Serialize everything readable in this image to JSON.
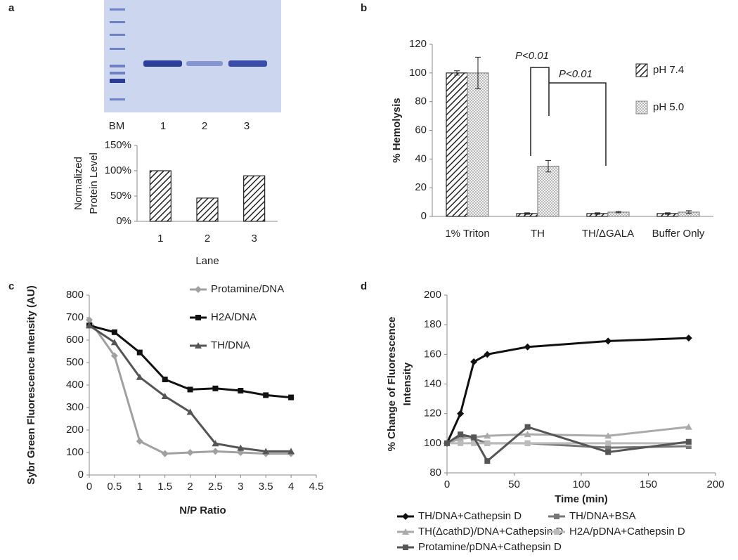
{
  "panel_labels": [
    "a",
    "b",
    "c",
    "d"
  ],
  "gel": {
    "lanes": [
      "BM",
      "1",
      "2",
      "3"
    ]
  },
  "chart_data": [
    {
      "type": "bar",
      "categories": [
        "1",
        "2",
        "3"
      ],
      "series": [
        {
          "values": [
            100,
            46,
            90
          ],
          "color": "#222222",
          "hatch": "diagonal"
        }
      ],
      "ylim": [
        0,
        150
      ],
      "yticks": [
        {
          "value": 0,
          "label": "0%"
        },
        {
          "value": 50,
          "label": "50%"
        },
        {
          "value": 100,
          "label": "100%"
        },
        {
          "value": 150,
          "label": "150%"
        }
      ],
      "ylabel_lines": [
        "Normalized",
        "Protein Level"
      ],
      "xlabel": "Lane",
      "grid": false
    },
    {
      "type": "bar",
      "categories": [
        "1% Triton",
        "TH",
        "TH/ΔGALA",
        "Buffer Only"
      ],
      "series": [
        {
          "name": "pH 7.4",
          "color": "#222222",
          "hatch": "diagonal",
          "values": [
            100,
            2,
            2,
            2
          ],
          "errors": [
            1.5,
            0.5,
            0.5,
            0.5
          ]
        },
        {
          "name": "pH 5.0",
          "color": "#888888",
          "hatch": "dots",
          "values": [
            100,
            35,
            3,
            3
          ],
          "errors": [
            11,
            4,
            0.5,
            1
          ]
        }
      ],
      "ylim": [
        0,
        120
      ],
      "yticks": [
        0,
        20,
        40,
        60,
        80,
        100,
        120
      ],
      "ylabel": "% Hemolysis",
      "grid": false,
      "annotations": [
        "P<0.01",
        "P<0.01"
      ]
    },
    {
      "type": "line",
      "x": [
        0,
        0.5,
        1,
        1.5,
        2,
        2.5,
        3,
        3.5,
        4
      ],
      "series": [
        {
          "name": "Protamine/DNA",
          "color": "#a0a0a0",
          "marker": "diamond",
          "values": [
            690,
            530,
            150,
            95,
            100,
            105,
            100,
            95,
            95
          ]
        },
        {
          "name": "H2A/DNA",
          "color": "#111111",
          "marker": "square",
          "values": [
            665,
            635,
            545,
            425,
            380,
            385,
            375,
            355,
            345
          ]
        },
        {
          "name": "TH/DNA",
          "color": "#555555",
          "marker": "triangle",
          "values": [
            665,
            590,
            435,
            350,
            280,
            140,
            120,
            105,
            105
          ]
        }
      ],
      "xlim": [
        0,
        4.5
      ],
      "xticks": [
        0,
        0.5,
        1,
        1.5,
        2,
        2.5,
        3,
        3.5,
        4,
        4.5
      ],
      "ylim": [
        0,
        800
      ],
      "yticks": [
        0,
        100,
        200,
        300,
        400,
        500,
        600,
        700,
        800
      ],
      "ylabel": "Sybr Green Fluorescence Intensity (AU)",
      "xlabel": "N/P Ratio",
      "grid": false,
      "legend": "top-right"
    },
    {
      "type": "line",
      "x": [
        0,
        10,
        20,
        30,
        60,
        120,
        180
      ],
      "series": [
        {
          "name": "TH/DNA+Cathepsin D",
          "color": "#111111",
          "marker": "diamond",
          "values": [
            100,
            120,
            155,
            160,
            165,
            169,
            171
          ]
        },
        {
          "name": "TH/DNA+BSA",
          "color": "#777777",
          "marker": "square",
          "values": [
            100,
            105,
            103,
            100,
            100,
            97,
            98
          ]
        },
        {
          "name": "TH(ΔcathD)/DNA+Cathepsin D",
          "color": "#aaaaaa",
          "marker": "triangle",
          "values": [
            100,
            103,
            104,
            105,
            106,
            105,
            111
          ]
        },
        {
          "name": "H2A/pDNA+Cathepsin D",
          "color": "#bbbbbb",
          "marker": "square",
          "values": [
            100,
            100,
            100,
            100,
            100,
            100,
            100
          ]
        },
        {
          "name": "Protamine/pDNA+Cathepsin D",
          "color": "#555555",
          "marker": "square",
          "values": [
            100,
            106,
            104,
            88,
            111,
            94,
            101
          ]
        }
      ],
      "xlim": [
        0,
        200
      ],
      "xticks": [
        0,
        50,
        100,
        150,
        200
      ],
      "ylim": [
        80,
        200
      ],
      "yticks": [
        80,
        100,
        120,
        140,
        160,
        180,
        200
      ],
      "ylabel_lines": [
        "% Change of Fluorescence",
        "Intensity"
      ],
      "xlabel": "Time (min)",
      "grid": false,
      "legend": "bottom"
    }
  ]
}
